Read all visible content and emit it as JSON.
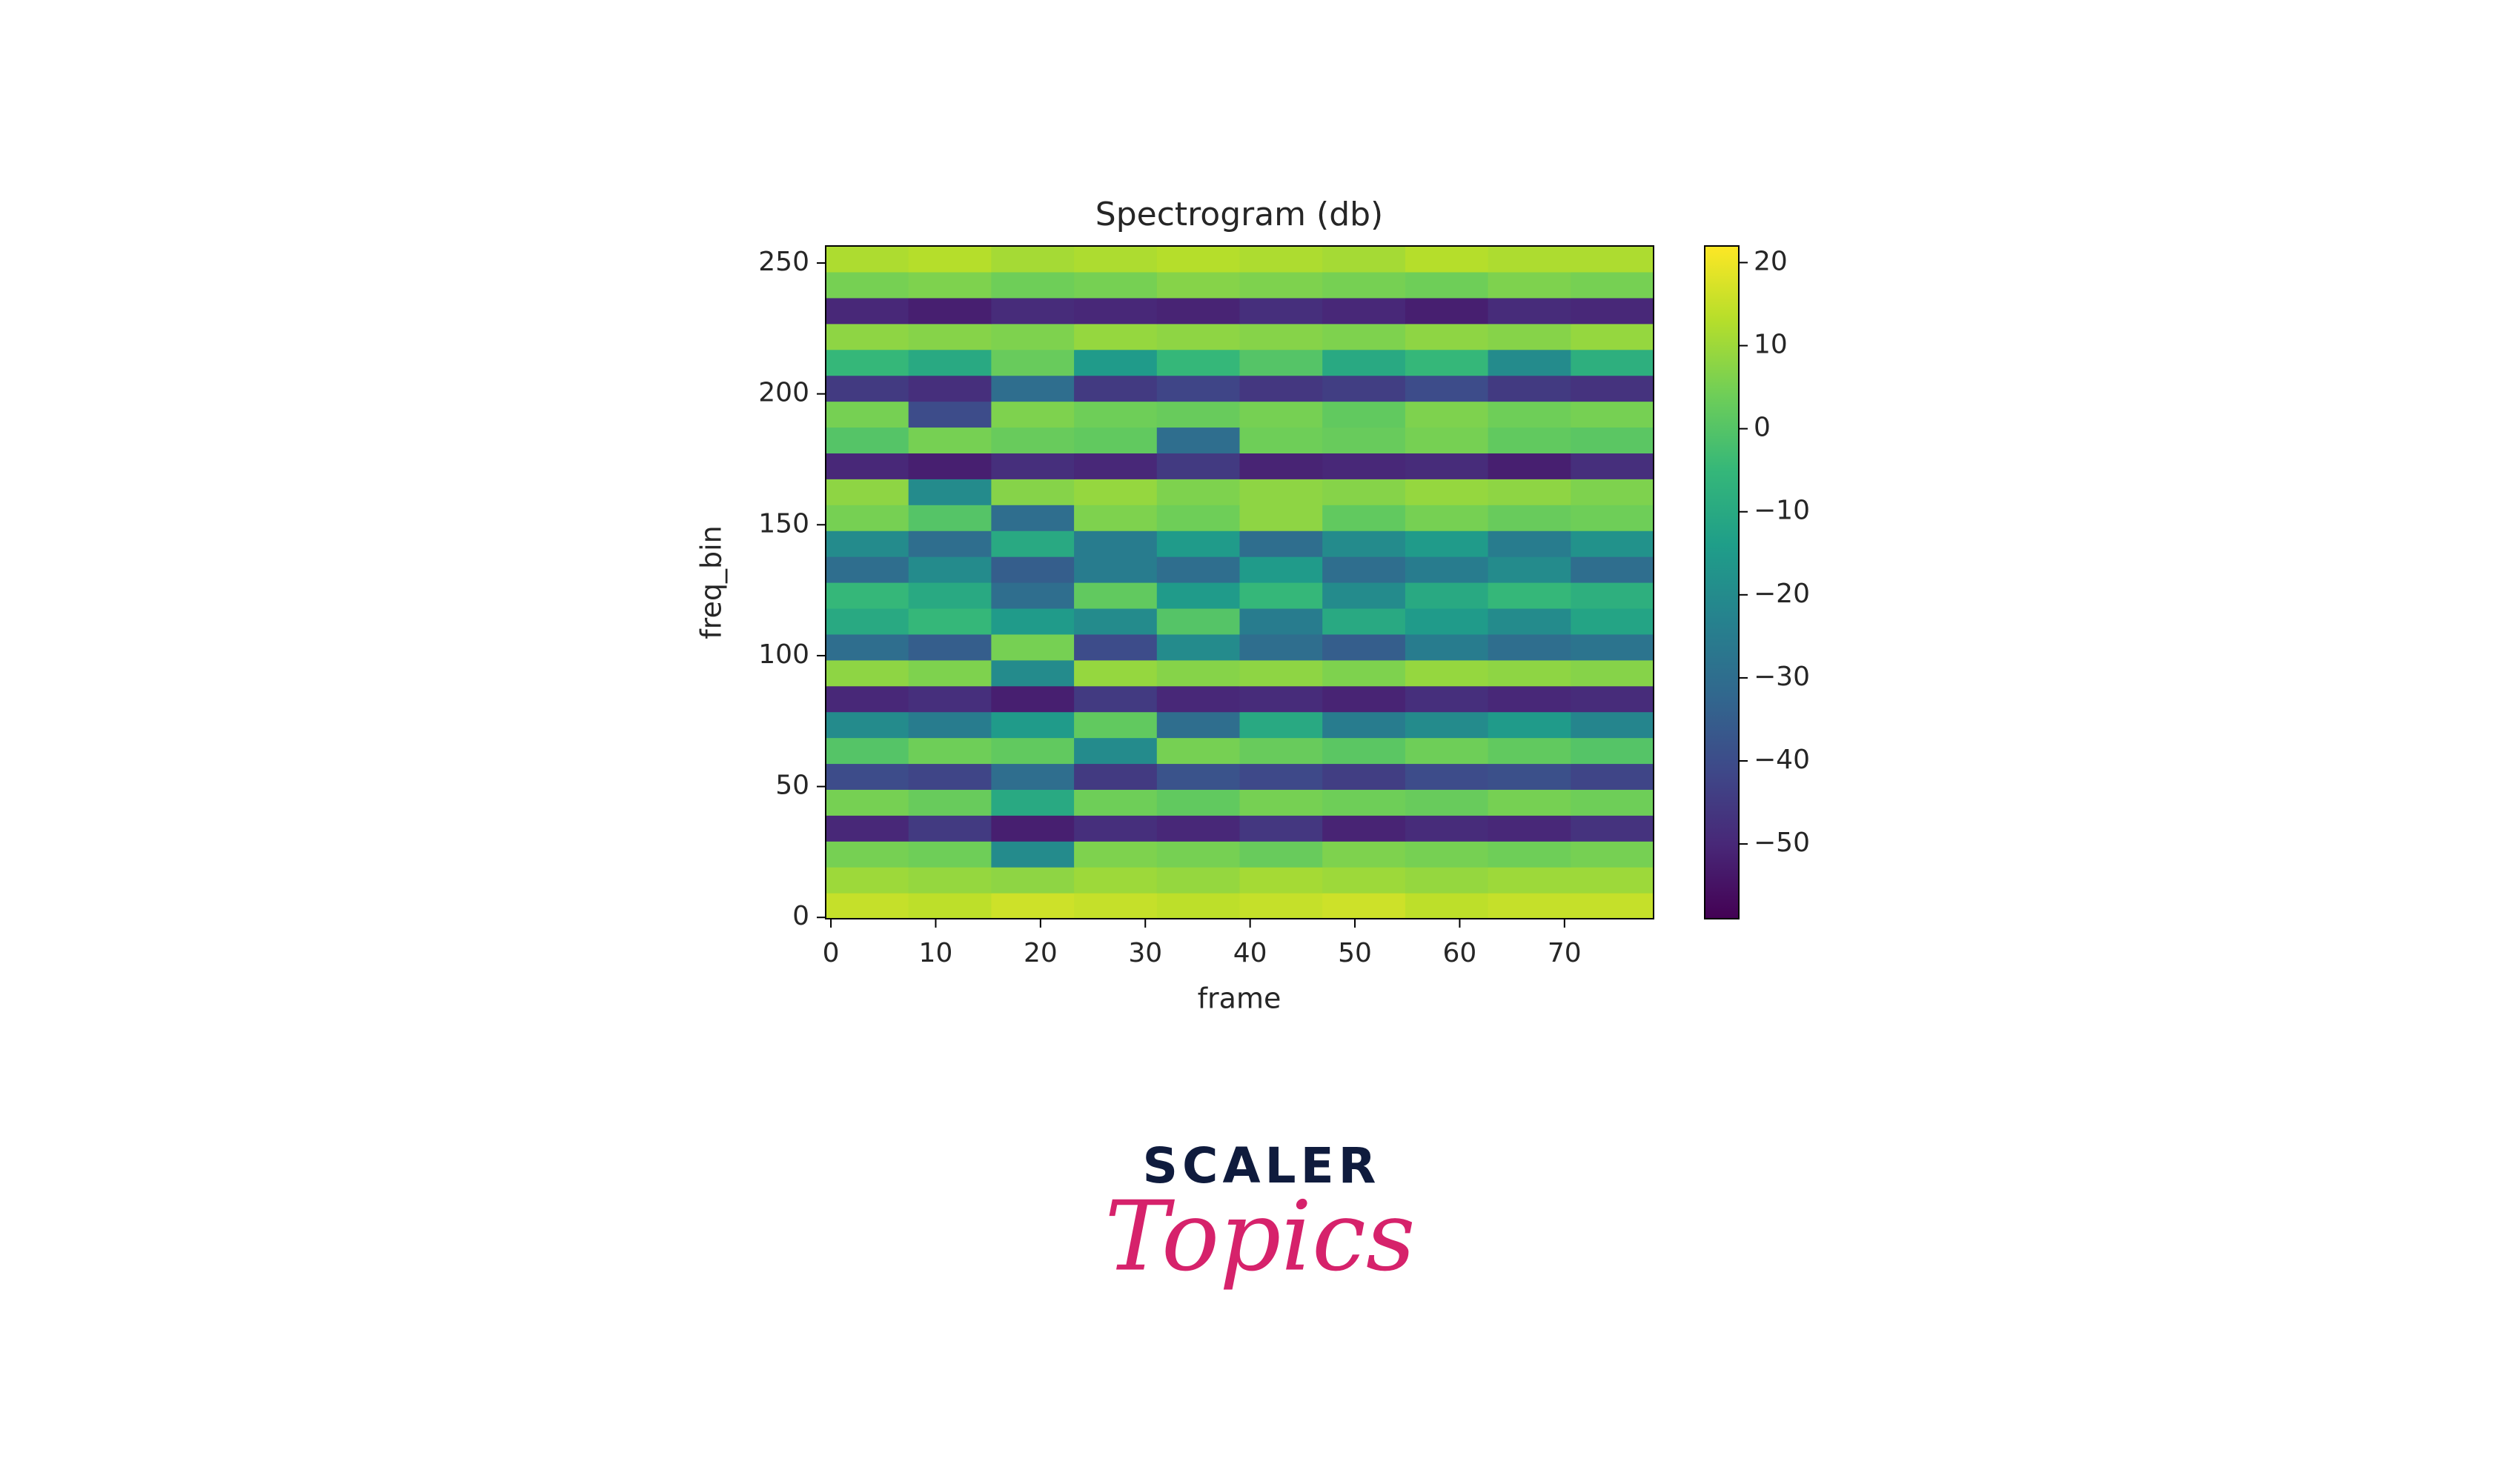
{
  "chart_data": {
    "type": "heatmap",
    "title": "Spectrogram (db)",
    "x_label": "frame",
    "y_label": "freq_bin",
    "colormap": "viridis",
    "xlim": [
      -0.5,
      78.5
    ],
    "xticks": [
      0,
      10,
      20,
      30,
      40,
      50,
      60,
      70
    ],
    "ylim": [
      -0.5,
      256.5
    ],
    "yticks": [
      0,
      50,
      100,
      150,
      200,
      250
    ],
    "clim": [
      -59,
      22
    ],
    "cticks": [
      20,
      10,
      0,
      {
        "value": -10,
        "label": "−10"
      },
      {
        "value": -20,
        "label": "−20"
      },
      {
        "value": -30,
        "label": "−30"
      },
      {
        "value": -40,
        "label": "−40"
      },
      {
        "value": -50,
        "label": "−50"
      }
    ],
    "z": [
      [
        15,
        14,
        16,
        15,
        14,
        15,
        16,
        14,
        15,
        15
      ],
      [
        10,
        9,
        8,
        10,
        9,
        11,
        10,
        9,
        10,
        10
      ],
      [
        5,
        4,
        -20,
        6,
        5,
        3,
        6,
        5,
        4,
        5
      ],
      [
        -50,
        -45,
        -52,
        -48,
        -50,
        -46,
        -51,
        -49,
        -50,
        -47
      ],
      [
        5,
        3,
        -10,
        4,
        2,
        5,
        4,
        3,
        5,
        4
      ],
      [
        -40,
        -42,
        -30,
        -45,
        -38,
        -41,
        -44,
        -40,
        -39,
        -42
      ],
      [
        0,
        4,
        2,
        -20,
        5,
        3,
        1,
        4,
        2,
        0
      ],
      [
        -20,
        -25,
        -15,
        2,
        -30,
        -10,
        -25,
        -20,
        -15,
        -22
      ],
      [
        -50,
        -48,
        -52,
        -45,
        -50,
        -49,
        -51,
        -48,
        -50,
        -49
      ],
      [
        8,
        6,
        -20,
        9,
        7,
        8,
        6,
        9,
        8,
        7
      ],
      [
        -30,
        -35,
        5,
        -40,
        -20,
        -30,
        -35,
        -25,
        -30,
        -28
      ],
      [
        -10,
        -5,
        -15,
        -20,
        0,
        -25,
        -10,
        -15,
        -20,
        -12
      ],
      [
        -5,
        -10,
        -30,
        2,
        -15,
        -5,
        -20,
        -10,
        -5,
        -8
      ],
      [
        -30,
        -20,
        -35,
        -25,
        -30,
        -15,
        -30,
        -25,
        -20,
        -30
      ],
      [
        -20,
        -30,
        -10,
        -25,
        -15,
        -30,
        -20,
        -15,
        -25,
        -18
      ],
      [
        5,
        0,
        -30,
        6,
        4,
        8,
        2,
        5,
        3,
        4
      ],
      [
        8,
        -20,
        7,
        9,
        6,
        8,
        7,
        9,
        8,
        6
      ],
      [
        -50,
        -52,
        -48,
        -50,
        -45,
        -51,
        -50,
        -49,
        -52,
        -48
      ],
      [
        0,
        5,
        3,
        2,
        -30,
        4,
        3,
        5,
        2,
        1
      ],
      [
        5,
        -40,
        6,
        4,
        3,
        5,
        2,
        6,
        4,
        5
      ],
      [
        -45,
        -48,
        -30,
        -45,
        -42,
        -46,
        -44,
        -40,
        -45,
        -47
      ],
      [
        -5,
        -10,
        3,
        -15,
        -5,
        0,
        -10,
        -5,
        -20,
        -8
      ],
      [
        8,
        7,
        6,
        9,
        8,
        7,
        6,
        8,
        7,
        9
      ],
      [
        -50,
        -52,
        -49,
        -50,
        -51,
        -48,
        -50,
        -52,
        -49,
        -50
      ],
      [
        5,
        6,
        4,
        5,
        7,
        6,
        5,
        4,
        6,
        5
      ],
      [
        12,
        13,
        11,
        12,
        13,
        12,
        11,
        13,
        12,
        12
      ]
    ]
  },
  "logo": {
    "top": "SCALER",
    "bottom": "Topics"
  }
}
